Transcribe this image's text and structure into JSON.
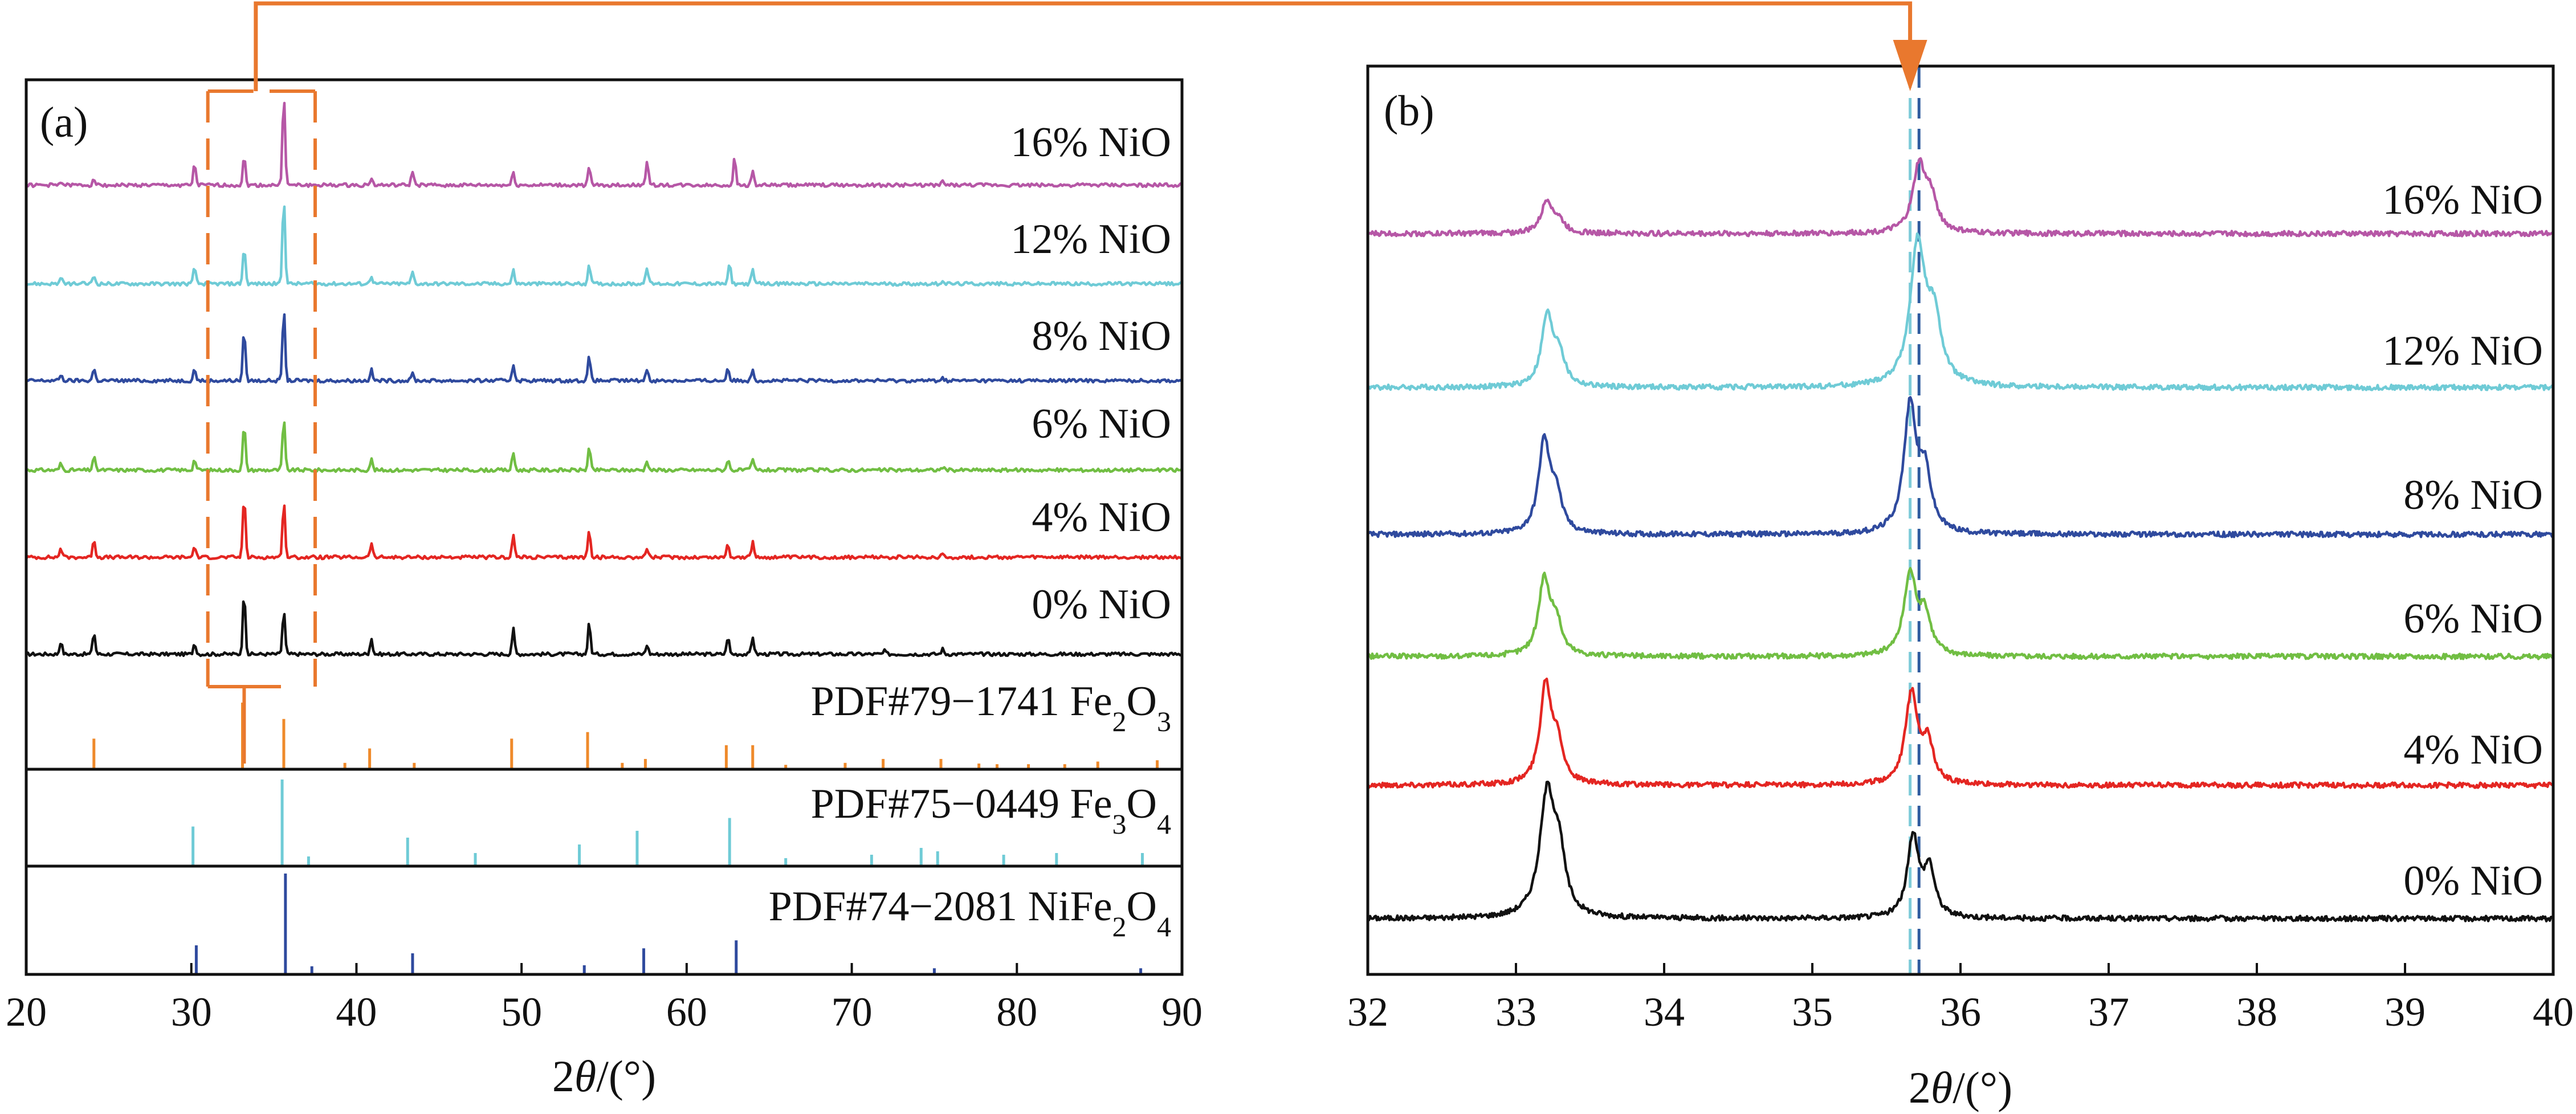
{
  "colors": {
    "0% NiO": "#111111",
    "4% NiO": "#e42622",
    "6% NiO": "#71be43",
    "8% NiO": "#2f4a9e",
    "12% NiO": "#6fcbd6",
    "16% NiO": "#b657a6",
    "pdf_fe2o3": "#ef8a2b",
    "pdf_fe3o4": "#6fcbd6",
    "pdf_nife2o4": "#2f4a9e",
    "annotation": "#e9782e",
    "guide_teal": "#7ecbd8",
    "guide_blue": "#2f5b9e"
  },
  "chart_data": [
    {
      "panel": "(a)",
      "type": "line",
      "xlabel_prefix": "2",
      "xlabel_symbol": "θ",
      "xlabel_suffix": "/(°)",
      "xlim": [
        20,
        90
      ],
      "xticks": [
        20,
        30,
        40,
        50,
        60,
        70,
        80,
        90
      ],
      "grid": false,
      "highlight_range": [
        31,
        37.5
      ],
      "series": [
        {
          "name": "0% NiO",
          "peaks": [
            [
              22.1,
              0.2
            ],
            [
              24.1,
              0.35
            ],
            [
              30.2,
              0.18
            ],
            [
              33.2,
              1.0
            ],
            [
              35.6,
              0.7
            ],
            [
              40.9,
              0.25
            ],
            [
              49.5,
              0.4
            ],
            [
              54.1,
              0.5
            ],
            [
              57.6,
              0.15
            ],
            [
              62.5,
              0.28
            ],
            [
              64.0,
              0.28
            ],
            [
              72.0,
              0.05
            ],
            [
              75.5,
              0.08
            ]
          ]
        },
        {
          "name": "4% NiO",
          "peaks": [
            [
              22.1,
              0.15
            ],
            [
              24.1,
              0.3
            ],
            [
              30.2,
              0.18
            ],
            [
              33.2,
              1.0
            ],
            [
              35.6,
              0.9
            ],
            [
              40.9,
              0.22
            ],
            [
              49.5,
              0.35
            ],
            [
              54.1,
              0.45
            ],
            [
              57.6,
              0.15
            ],
            [
              62.5,
              0.22
            ],
            [
              64.0,
              0.24
            ],
            [
              75.5,
              0.06
            ]
          ]
        },
        {
          "name": "6% NiO",
          "peaks": [
            [
              22.1,
              0.12
            ],
            [
              24.1,
              0.25
            ],
            [
              30.2,
              0.2
            ],
            [
              33.2,
              0.85
            ],
            [
              35.6,
              0.95
            ],
            [
              40.9,
              0.2
            ],
            [
              49.5,
              0.32
            ],
            [
              54.1,
              0.42
            ],
            [
              57.6,
              0.18
            ],
            [
              62.5,
              0.2
            ],
            [
              64.0,
              0.2
            ],
            [
              75.5,
              0.06
            ]
          ]
        },
        {
          "name": "8% NiO",
          "peaks": [
            [
              22.1,
              0.1
            ],
            [
              24.1,
              0.2
            ],
            [
              30.2,
              0.2
            ],
            [
              33.2,
              0.85
            ],
            [
              35.6,
              1.2
            ],
            [
              40.9,
              0.18
            ],
            [
              43.4,
              0.12
            ],
            [
              49.5,
              0.28
            ],
            [
              54.1,
              0.4
            ],
            [
              57.6,
              0.2
            ],
            [
              62.5,
              0.22
            ],
            [
              64.0,
              0.2
            ],
            [
              75.5,
              0.05
            ]
          ]
        },
        {
          "name": "12% NiO",
          "peaks": [
            [
              22.1,
              0.08
            ],
            [
              24.1,
              0.12
            ],
            [
              30.2,
              0.25
            ],
            [
              33.2,
              0.55
            ],
            [
              35.6,
              1.3
            ],
            [
              40.9,
              0.12
            ],
            [
              43.4,
              0.18
            ],
            [
              49.5,
              0.2
            ],
            [
              54.1,
              0.3
            ],
            [
              57.6,
              0.25
            ],
            [
              62.6,
              0.3
            ],
            [
              64.0,
              0.2
            ],
            [
              75.5,
              0.05
            ]
          ]
        },
        {
          "name": "16% NiO",
          "peaks": [
            [
              22.1,
              0.06
            ],
            [
              24.1,
              0.1
            ],
            [
              30.2,
              0.3
            ],
            [
              33.2,
              0.4
            ],
            [
              35.6,
              1.3
            ],
            [
              40.9,
              0.1
            ],
            [
              43.4,
              0.2
            ],
            [
              49.5,
              0.18
            ],
            [
              54.1,
              0.25
            ],
            [
              57.6,
              0.35
            ],
            [
              62.9,
              0.38
            ],
            [
              64.0,
              0.2
            ],
            [
              75.5,
              0.05
            ]
          ]
        }
      ],
      "references": [
        {
          "name_main": "PDF#79−1741 Fe",
          "sub1": "2",
          "mid": "O",
          "sub2": "3",
          "color_key": "pdf_fe2o3",
          "sticks": [
            [
              24.1,
              0.45
            ],
            [
              33.1,
              1.0
            ],
            [
              35.6,
              0.75
            ],
            [
              39.3,
              0.08
            ],
            [
              40.8,
              0.3
            ],
            [
              43.5,
              0.08
            ],
            [
              49.4,
              0.45
            ],
            [
              54.0,
              0.55
            ],
            [
              56.1,
              0.08
            ],
            [
              57.5,
              0.14
            ],
            [
              62.4,
              0.35
            ],
            [
              64.0,
              0.35
            ],
            [
              66.0,
              0.05
            ],
            [
              69.6,
              0.08
            ],
            [
              71.9,
              0.14
            ],
            [
              75.4,
              0.14
            ],
            [
              77.7,
              0.07
            ],
            [
              78.8,
              0.06
            ],
            [
              80.7,
              0.06
            ],
            [
              82.9,
              0.06
            ],
            [
              84.9,
              0.1
            ],
            [
              88.5,
              0.12
            ]
          ]
        },
        {
          "name_main": "PDF#75−0449 Fe",
          "sub1": "3",
          "mid": "O",
          "sub2": "4",
          "color_key": "pdf_fe3o4",
          "sticks": [
            [
              30.1,
              0.45
            ],
            [
              35.5,
              1.0
            ],
            [
              37.1,
              0.1
            ],
            [
              43.1,
              0.32
            ],
            [
              47.2,
              0.14
            ],
            [
              53.5,
              0.24
            ],
            [
              57.0,
              0.4
            ],
            [
              62.6,
              0.55
            ],
            [
              66.0,
              0.08
            ],
            [
              71.2,
              0.12
            ],
            [
              74.2,
              0.2
            ],
            [
              75.2,
              0.16
            ],
            [
              79.2,
              0.12
            ],
            [
              82.4,
              0.14
            ],
            [
              87.6,
              0.14
            ]
          ]
        },
        {
          "name_main": "PDF#74−2081 NiFe",
          "sub1": "2",
          "mid": "O",
          "sub2": "4",
          "color_key": "pdf_nife2o4",
          "sticks": [
            [
              30.3,
              0.28
            ],
            [
              35.7,
              1.0
            ],
            [
              37.3,
              0.07
            ],
            [
              43.4,
              0.2
            ],
            [
              53.8,
              0.08
            ],
            [
              57.4,
              0.25
            ],
            [
              63.0,
              0.33
            ],
            [
              75.0,
              0.05
            ],
            [
              87.5,
              0.05
            ]
          ]
        }
      ]
    },
    {
      "panel": "(b)",
      "type": "line",
      "xlabel_prefix": "2",
      "xlabel_symbol": "θ",
      "xlabel_suffix": "/(°)",
      "xlim": [
        32,
        40
      ],
      "xticks": [
        32,
        33,
        34,
        35,
        36,
        37,
        38,
        39,
        40
      ],
      "grid": false,
      "guide_lines": [
        35.66,
        35.72
      ],
      "series": [
        {
          "name": "0% NiO",
          "peaks": [
            [
              33.21,
              1.0,
              0.06
            ],
            [
              33.29,
              0.45,
              0.05
            ],
            [
              35.68,
              0.68,
              0.045
            ],
            [
              35.79,
              0.4,
              0.045
            ]
          ]
        },
        {
          "name": "4% NiO",
          "peaks": [
            [
              33.2,
              0.88,
              0.045
            ],
            [
              33.28,
              0.35,
              0.045
            ],
            [
              35.67,
              0.82,
              0.05
            ],
            [
              35.78,
              0.35,
              0.045
            ]
          ]
        },
        {
          "name": "6% NiO",
          "peaks": [
            [
              33.19,
              0.75,
              0.045
            ],
            [
              33.27,
              0.32,
              0.045
            ],
            [
              35.66,
              0.8,
              0.05
            ],
            [
              35.76,
              0.38,
              0.05
            ]
          ]
        },
        {
          "name": "8% NiO",
          "peaks": [
            [
              33.19,
              0.72,
              0.045
            ],
            [
              33.27,
              0.3,
              0.045
            ],
            [
              35.66,
              1.0,
              0.05
            ],
            [
              35.76,
              0.45,
              0.05
            ]
          ]
        },
        {
          "name": "12% NiO",
          "peaks": [
            [
              33.21,
              0.55,
              0.045
            ],
            [
              33.29,
              0.25,
              0.045
            ],
            [
              35.71,
              1.1,
              0.06
            ],
            [
              35.82,
              0.5,
              0.06
            ]
          ]
        },
        {
          "name": "16% NiO",
          "peaks": [
            [
              33.21,
              0.3,
              0.045
            ],
            [
              33.29,
              0.1,
              0.045
            ],
            [
              35.72,
              0.6,
              0.05
            ],
            [
              35.8,
              0.3,
              0.05
            ]
          ]
        }
      ]
    }
  ]
}
